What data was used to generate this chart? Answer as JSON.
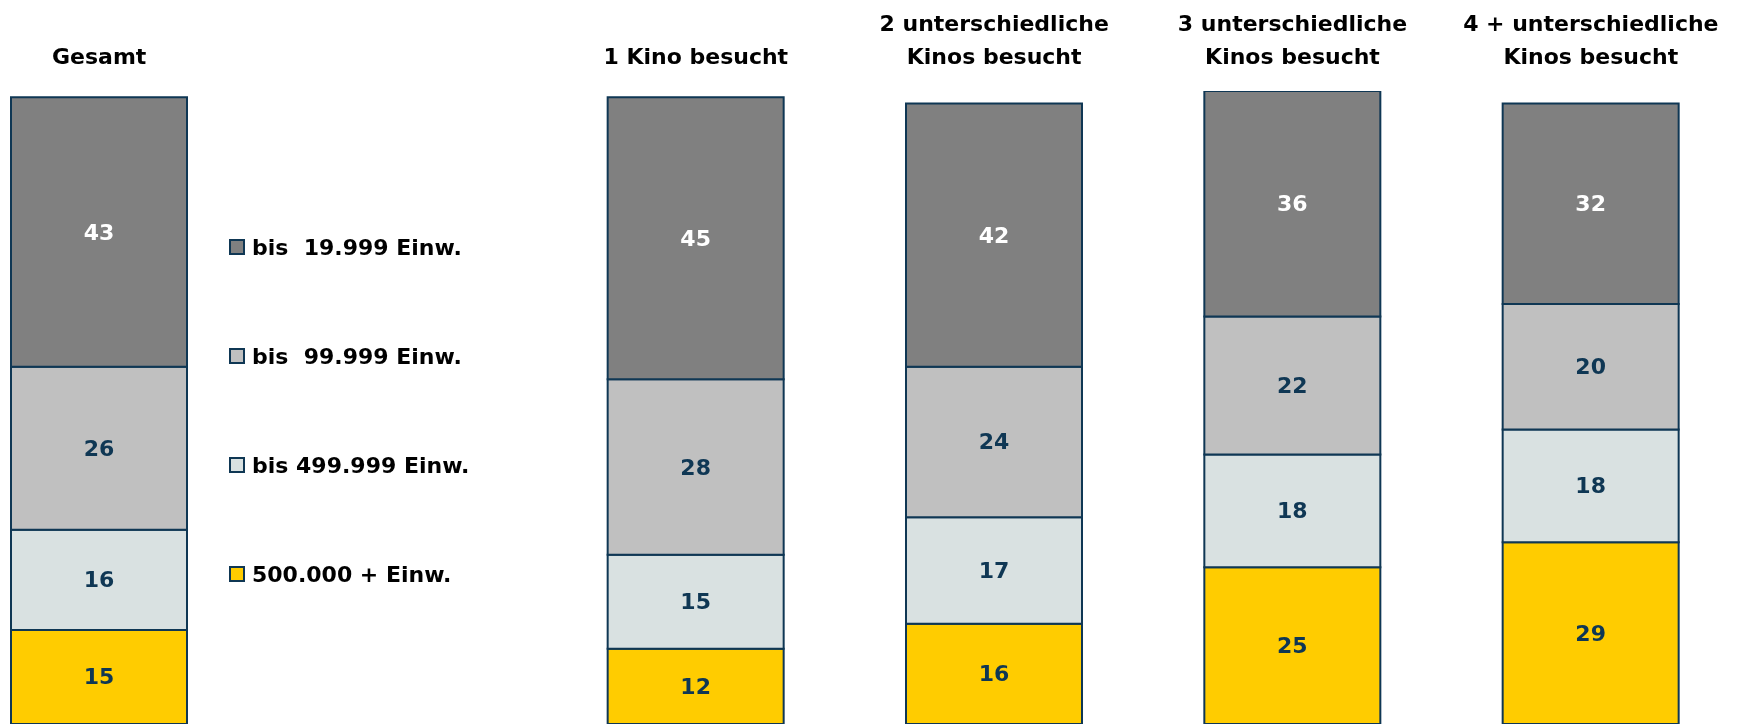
{
  "chart_data": {
    "type": "bar",
    "stacked": true,
    "categories": [
      "Gesamt",
      null,
      "1 Kino besucht",
      "2 unterschiedliche Kinos besucht",
      "3 unterschiedliche Kinos besucht",
      "4 + unterschiedliche Kinos besucht"
    ],
    "series": [
      {
        "name": "500.000 + Einw.",
        "color": "#ffcc00",
        "values": [
          15,
          null,
          12,
          16,
          25,
          29
        ]
      },
      {
        "name": "bis 499.999 Einw.",
        "color": "#d9e1e1",
        "values": [
          16,
          null,
          15,
          17,
          18,
          18
        ]
      },
      {
        "name": "bis  99.999 Einw.",
        "color": "#c0c0c0",
        "values": [
          26,
          null,
          28,
          24,
          22,
          20
        ]
      },
      {
        "name": "bis  19.999 Einw.",
        "color": "#808080",
        "values": [
          43,
          null,
          45,
          42,
          36,
          32
        ]
      }
    ],
    "ylim": [
      0,
      101
    ],
    "data_labels": true,
    "legend": "left",
    "tick_labels": "x"
  }
}
